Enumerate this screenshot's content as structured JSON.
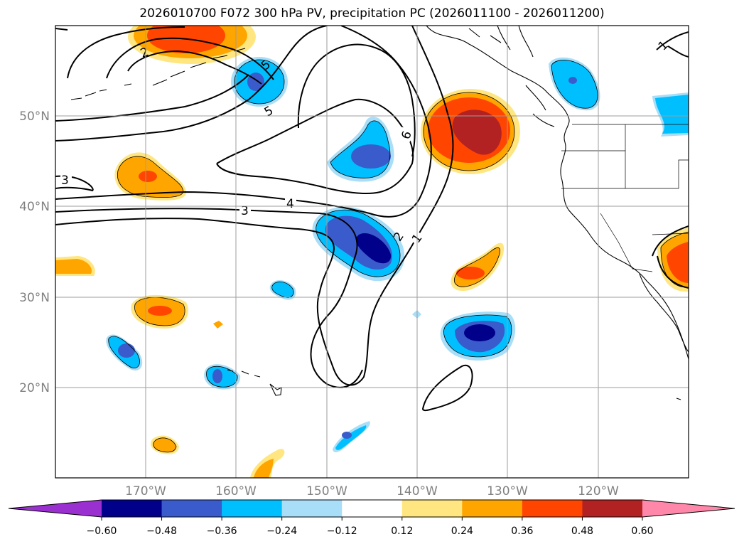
{
  "title": "2026010700 F072 300 hPa PV, precipitation PC (2026011100 - 2026011200)",
  "map": {
    "lon_ticks": [
      "170°W",
      "160°W",
      "150°W",
      "140°W",
      "130°W",
      "120°W"
    ],
    "lat_ticks": [
      "50°N",
      "40°N",
      "30°N",
      "20°N"
    ],
    "contour_labels": [
      "1",
      "2",
      "3",
      "3",
      "4",
      "5",
      "5",
      "6",
      "1"
    ]
  },
  "colorbar": {
    "ticks": [
      "-0.60",
      "-0.48",
      "-0.36",
      "-0.24",
      "-0.12",
      "0.12",
      "0.24",
      "0.36",
      "0.48",
      "0.60"
    ],
    "colors": [
      "#9b30d0",
      "#00008b",
      "#3a5bcb",
      "#00bfff",
      "#a8def8",
      "#ffffff",
      "#ffe680",
      "#ffa500",
      "#ff4500",
      "#b22222",
      "#ff88aa"
    ]
  },
  "palette": {
    "c_m060": "#00008b",
    "c_m048": "#3a5bcb",
    "c_m036": "#00bfff",
    "c_m024": "#a8def8",
    "c_p024": "#ffe680",
    "c_p036": "#ffa500",
    "c_p048": "#ff4500",
    "c_p060": "#b22222"
  }
}
